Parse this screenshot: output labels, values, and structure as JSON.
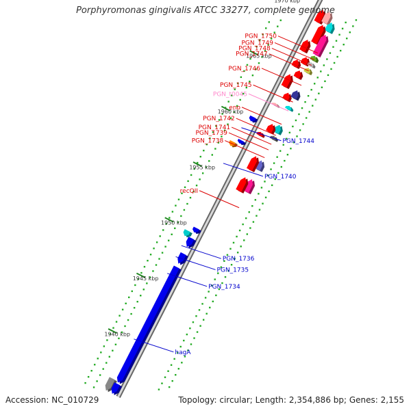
{
  "title": "Porphyromonas gingivalis ATCC 33277, complete genome",
  "footer": {
    "accession": "Accession: NC_010729",
    "summary": "Topology: circular; Length: 2,354,886 bp; Genes: 2,155"
  },
  "colors": {
    "backbone_dark": "#666666",
    "backbone_light": "#d8d8d8",
    "forward_gene": "#ff0000",
    "reverse_gene": "#0000ee",
    "forward_label": "#dd0000",
    "reverse_label": "#0000cc",
    "trna_label": "#ff88cc",
    "tick": "#228822",
    "orf_dot": "#22aa22"
  },
  "scale_ticks": [
    {
      "label": "1940 kbp",
      "kbp": 1940
    },
    {
      "label": "1945 kbp",
      "kbp": 1945
    },
    {
      "label": "1950 kbp",
      "kbp": 1950
    },
    {
      "label": "1955 kbp",
      "kbp": 1955
    },
    {
      "label": "1960 kbp",
      "kbp": 1960
    },
    {
      "label": "1965 kbp",
      "kbp": 1965
    },
    {
      "label": "1970 kbp",
      "kbp": 1970
    }
  ],
  "forward_labels": [
    {
      "name": "PGN_1750",
      "kbp": 1967.3
    },
    {
      "name": "PGN_1749",
      "kbp": 1966.7
    },
    {
      "name": "PGN_1748",
      "kbp": 1966.2
    },
    {
      "name": "PGN_1747",
      "kbp": 1965.7
    },
    {
      "name": "PGN_1746",
      "kbp": 1964.4
    },
    {
      "name": "PGN_1745",
      "kbp": 1962.9
    },
    {
      "name": "PGN_t0045",
      "kbp": 1962.1,
      "kind": "trna"
    },
    {
      "name": "eno",
      "kbp": 1960.9
    },
    {
      "name": "PGN_1742",
      "kbp": 1959.9
    },
    {
      "name": "PGN_1741",
      "kbp": 1959.1
    },
    {
      "name": "PGN_1739",
      "kbp": 1958.6
    },
    {
      "name": "PGN_1738",
      "kbp": 1957.9
    },
    {
      "name": "recQII",
      "kbp": 1953.4
    }
  ],
  "reverse_labels": [
    {
      "name": "PGN_1744",
      "kbp": 1959.2
    },
    {
      "name": "PGN_1740",
      "kbp": 1956.0
    },
    {
      "name": "PGN_1736",
      "kbp": 1948.6
    },
    {
      "name": "PGN_1735",
      "kbp": 1947.6
    },
    {
      "name": "PGN_1734",
      "kbp": 1946.1
    },
    {
      "name": "hagA",
      "kbp": 1940.2
    }
  ],
  "gene_blocks": [
    {
      "kind": "fwd",
      "lane": 1,
      "start": 1969.5,
      "end": 1970.6,
      "color": "#ff0000"
    },
    {
      "kind": "fwd",
      "lane": 2,
      "start": 1969.7,
      "end": 1970.7,
      "color": "#ffaaaa"
    },
    {
      "kind": "fwd",
      "lane": 3,
      "start": 1969.2,
      "end": 1970.0,
      "color": "#00dddd"
    },
    {
      "kind": "fwd",
      "lane": 2,
      "start": 1967.9,
      "end": 1969.5,
      "color": "#ff0000"
    },
    {
      "kind": "fwd",
      "lane": 3,
      "start": 1967.1,
      "end": 1968.9,
      "color": "#ff1493"
    },
    {
      "kind": "fwd",
      "lane": 1,
      "start": 1966.9,
      "end": 1967.9,
      "color": "#ff0000"
    },
    {
      "kind": "fwd",
      "lane": 3,
      "start": 1966.6,
      "end": 1967.0,
      "color": "#66aa22"
    },
    {
      "kind": "fwd",
      "lane": 2,
      "start": 1966.0,
      "end": 1966.6,
      "color": "#ff0000"
    },
    {
      "kind": "fwd",
      "lane": 3,
      "start": 1966.1,
      "end": 1966.4,
      "color": "#bbbbbb"
    },
    {
      "kind": "fwd",
      "lane": 1,
      "start": 1965.5,
      "end": 1966.1,
      "color": "#ff0000"
    },
    {
      "kind": "fwd",
      "lane": 3,
      "start": 1965.5,
      "end": 1965.9,
      "color": "#cccc44"
    },
    {
      "kind": "fwd",
      "lane": 2,
      "start": 1964.8,
      "end": 1965.4,
      "color": "#ff0000"
    },
    {
      "kind": "fwd",
      "lane": 1,
      "start": 1963.7,
      "end": 1964.8,
      "color": "#ff0000"
    },
    {
      "kind": "fwd",
      "lane": 3,
      "start": 1963.2,
      "end": 1963.9,
      "color": "#333399"
    },
    {
      "kind": "fwd",
      "lane": 2,
      "start": 1962.8,
      "end": 1963.4,
      "color": "#ff0000"
    },
    {
      "kind": "fwd",
      "lane": 3,
      "start": 1962.2,
      "end": 1962.5,
      "color": "#00dddd"
    },
    {
      "kind": "fwd",
      "lane": 1,
      "start": 1962.0,
      "end": 1962.2,
      "color": "#ffaaaa"
    },
    {
      "kind": "fwd",
      "lane": 3,
      "start": 1960.1,
      "end": 1960.8,
      "color": "#00cccc"
    },
    {
      "kind": "fwd",
      "lane": 2,
      "start": 1959.9,
      "end": 1960.6,
      "color": "#ff0000"
    },
    {
      "kind": "fwd",
      "lane": 3,
      "start": 1959.5,
      "end": 1959.8,
      "color": "#666666"
    },
    {
      "kind": "fwd",
      "lane": 1,
      "start": 1959.3,
      "end": 1959.6,
      "color": "#ff0000"
    },
    {
      "kind": "fwd",
      "lane": 3,
      "start": 1956.8,
      "end": 1957.6,
      "color": "#6666cc"
    },
    {
      "kind": "fwd",
      "lane": 2,
      "start": 1956.5,
      "end": 1957.7,
      "color": "#ff0000"
    },
    {
      "kind": "fwd",
      "lane": 3,
      "start": 1954.8,
      "end": 1955.9,
      "color": "#ff1493"
    },
    {
      "kind": "fwd",
      "lane": 2,
      "start": 1954.6,
      "end": 1955.8,
      "color": "#ff0000"
    },
    {
      "kind": "rev",
      "lane": 1,
      "start": 1960.0,
      "end": 1960.4,
      "color": "#0000ee"
    },
    {
      "kind": "rev",
      "lane": 1,
      "start": 1958.0,
      "end": 1958.3,
      "color": "#0000ee"
    },
    {
      "kind": "rev",
      "lane": 2,
      "start": 1957.5,
      "end": 1957.9,
      "color": "#ff8800"
    },
    {
      "kind": "rev",
      "lane": 1,
      "start": 1950.0,
      "end": 1950.4,
      "color": "#0000ee"
    },
    {
      "kind": "rev",
      "lane": 2,
      "start": 1949.4,
      "end": 1949.9,
      "color": "#00cccc"
    },
    {
      "kind": "rev",
      "lane": 1,
      "start": 1948.7,
      "end": 1949.5,
      "color": "#0000ee"
    },
    {
      "kind": "rev",
      "lane": 1,
      "start": 1947.2,
      "end": 1948.1,
      "color": "#0000ee"
    },
    {
      "kind": "rev",
      "lane": 1,
      "start": 1936.5,
      "end": 1946.9,
      "color": "#0000ee"
    },
    {
      "kind": "rev",
      "lane": 2,
      "start": 1935.5,
      "end": 1936.6,
      "color": "#888888"
    },
    {
      "kind": "rev",
      "lane": 1,
      "start": 1935.5,
      "end": 1936.4,
      "color": "#0000ee"
    }
  ]
}
